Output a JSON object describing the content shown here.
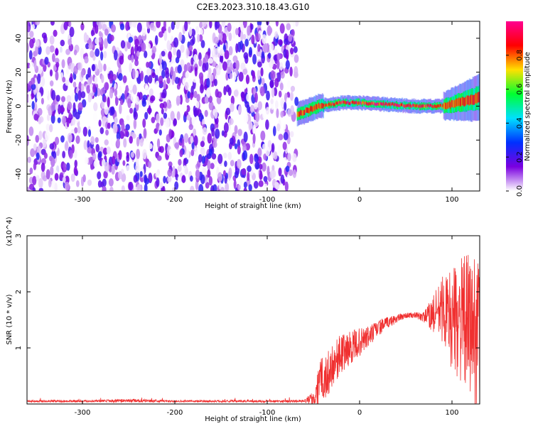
{
  "title": "C2E3.2023.310.18.43.G10",
  "chart_data": [
    {
      "type": "heatmap",
      "xlabel": "Height of straight line (km)",
      "ylabel": "Frequency (Hz)",
      "xlim": [
        -360,
        130
      ],
      "ylim": [
        -50,
        50
      ],
      "xticks": [
        -300,
        -200,
        -100,
        0,
        100
      ],
      "yticks": [
        -40,
        -20,
        0,
        20,
        40
      ],
      "colorbar": {
        "label": "Normalized spectral amplitude",
        "range": [
          0,
          1
        ],
        "ticks": [
          "0.0",
          "0.2",
          "0.4",
          "0.6",
          "0.8"
        ],
        "colormap": [
          "#ffffff",
          "#7a00e0",
          "#0030ff",
          "#00e0ff",
          "#00ff30",
          "#ffe000",
          "#ff0000",
          "#ff0090"
        ]
      },
      "regions": [
        {
          "name": "noise",
          "x": [
            -360,
            -68
          ],
          "y": [
            -50,
            50
          ],
          "amplitude": [
            0.0,
            0.25
          ]
        },
        {
          "name": "signal",
          "x": [
            -68,
            130
          ],
          "y_center": [
            -5,
            0,
            2,
            2,
            1,
            0,
            0,
            5
          ],
          "x_center": [
            -68,
            -45,
            -20,
            0,
            30,
            60,
            90,
            130
          ],
          "amplitude": [
            0.3,
            1.0
          ]
        }
      ],
      "grid": false
    },
    {
      "type": "line",
      "xlabel": "Height of straight line (km)",
      "ylabel": "SNR (10 * v/v)",
      "y_multiplier": "(x10^4)",
      "xlim": [
        -360,
        130
      ],
      "ylim": [
        0,
        3
      ],
      "xticks": [
        -300,
        -200,
        -100,
        0,
        100
      ],
      "yticks": [
        1,
        2,
        3
      ],
      "color": "#f03030",
      "series": [
        {
          "x": [
            -360,
            -300,
            -250,
            -200,
            -150,
            -100,
            -60,
            -48,
            -45,
            -42,
            -40,
            -35,
            -30,
            -20,
            -10,
            0,
            10,
            20,
            30,
            40,
            50,
            60,
            70,
            80,
            90,
            100,
            110,
            120,
            128
          ],
          "y": [
            0.05,
            0.05,
            0.06,
            0.05,
            0.05,
            0.05,
            0.05,
            0.12,
            0.3,
            0.8,
            0.4,
            0.5,
            0.7,
            0.9,
            1.0,
            1.1,
            1.2,
            1.35,
            1.45,
            1.52,
            1.58,
            1.58,
            1.55,
            1.6,
            1.7,
            1.5,
            1.5,
            1.4,
            1.3
          ],
          "spread": [
            0.02,
            0.02,
            0.03,
            0.02,
            0.02,
            0.02,
            0.02,
            0.15,
            0.35,
            0.5,
            0.4,
            0.4,
            0.4,
            0.35,
            0.3,
            0.25,
            0.2,
            0.15,
            0.1,
            0.08,
            0.05,
            0.05,
            0.1,
            0.35,
            0.6,
            0.9,
            1.1,
            1.3,
            1.4
          ]
        }
      ]
    }
  ]
}
